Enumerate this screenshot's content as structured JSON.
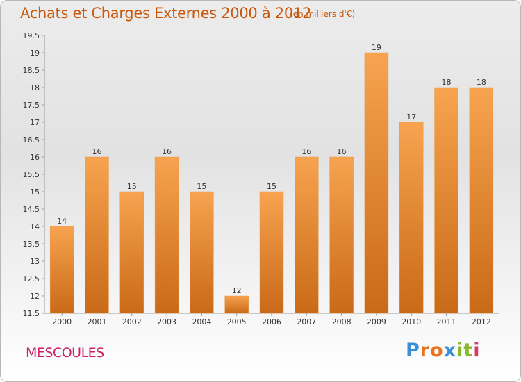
{
  "header": {
    "title": "Achats et Charges Externes 2000 à 2012",
    "subtitle": "(en milliers d'€)"
  },
  "footer": {
    "commune": "MESCOULES",
    "logo_text": "Proxiti"
  },
  "colors": {
    "bar_light": "#f7a34f",
    "bar_dark": "#c96a18",
    "title": "#c9560a",
    "commune": "#cc2266"
  },
  "chart_data": {
    "type": "bar",
    "title": "Achats et Charges Externes 2000 à 2012",
    "subtitle": "(en milliers d'€)",
    "categories": [
      "2000",
      "2001",
      "2002",
      "2003",
      "2004",
      "2005",
      "2006",
      "2007",
      "2008",
      "2009",
      "2010",
      "2011",
      "2012"
    ],
    "values": [
      14,
      16,
      15,
      16,
      15,
      12,
      15,
      16,
      16,
      19,
      17,
      18,
      18
    ],
    "data_labels": [
      "14",
      "16",
      "15",
      "16",
      "15",
      "12",
      "15",
      "16",
      "16",
      "19",
      "17",
      "18",
      "18"
    ],
    "ylim": [
      11.5,
      19.5
    ],
    "yticks": [
      11.5,
      12,
      12.5,
      13,
      13.5,
      14,
      14.5,
      15,
      15.5,
      16,
      16.5,
      17,
      17.5,
      18,
      18.5,
      19,
      19.5
    ],
    "ytick_labels": [
      "11.5",
      "12",
      "12.5",
      "13",
      "13.5",
      "14",
      "14.5",
      "15",
      "15.5",
      "16",
      "16.5",
      "17",
      "17.5",
      "18",
      "18.5",
      "19",
      "19.5"
    ],
    "grid": false,
    "legend": "none"
  }
}
